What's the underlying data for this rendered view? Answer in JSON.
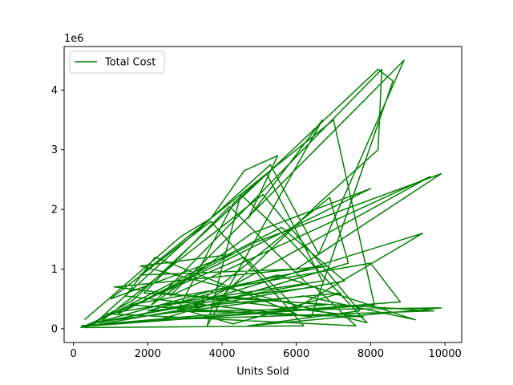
{
  "chart_data": {
    "type": "line",
    "xlabel": "Units Sold",
    "ylabel": "",
    "y_offset_label": "1e6",
    "xlim": [
      -250,
      10450
    ],
    "ylim": [
      -0.23,
      4.73
    ],
    "xticks": [
      0,
      2000,
      4000,
      6000,
      8000,
      10000
    ],
    "xtick_labels": [
      "0",
      "2000",
      "4000",
      "6000",
      "8000",
      "10000"
    ],
    "yticks": [
      0,
      1,
      2,
      3,
      4
    ],
    "ytick_labels": [
      "0",
      "1",
      "2",
      "3",
      "4"
    ],
    "grid": false,
    "legend_position": "top-left",
    "series": [
      {
        "name": "Total Cost",
        "color": "#008000",
        "x": [
          300,
          2900,
          3700,
          4600,
          5500,
          4700,
          6700,
          3600,
          4500,
          5800,
          7900,
          1800,
          4300,
          1000,
          3700,
          5200,
          6200,
          300,
          1600,
          8200,
          8600,
          6400,
          1400,
          2200,
          6000,
          2800,
          4300,
          5200,
          6700,
          4000,
          6600,
          8200,
          8300,
          2100,
          4800,
          8000,
          1200,
          4900,
          9900,
          6000,
          1800,
          7000,
          8100,
          500,
          5300,
          6600,
          8900,
          2600,
          9600,
          3200,
          6900,
          7400,
          2300,
          9700,
          1900,
          4200,
          6300,
          600,
          3800,
          6800,
          1100,
          7800,
          5000,
          1500,
          8000,
          8800,
          400,
          5600,
          7300,
          200,
          4600,
          6000,
          9400,
          3400,
          700,
          5100,
          7700,
          4700,
          9900,
          3000,
          500,
          6200,
          9200,
          5500,
          2000,
          7200,
          4300,
          2500,
          6500,
          7600,
          900,
          3900,
          6800,
          200
        ],
        "y": [
          0.15,
          1.55,
          1.85,
          2.65,
          2.9,
          1.85,
          3.5,
          0.05,
          2.25,
          1.5,
          0.1,
          1.05,
          1.25,
          0.5,
          1.8,
          0.75,
          0.05,
          0.02,
          0.48,
          4.35,
          4.15,
          0.2,
          0.55,
          1.2,
          0.25,
          0.3,
          2.1,
          2.6,
          0.8,
          0.55,
          2.1,
          3.0,
          4.35,
          0.4,
          1.6,
          2.35,
          0.25,
          1.45,
          2.6,
          1.0,
          0.9,
          3.5,
          0.4,
          0.05,
          2.75,
          1.25,
          4.5,
          0.55,
          2.55,
          0.35,
          2.2,
          1.1,
          0.15,
          0.3,
          0.6,
          2.05,
          0.75,
          0.1,
          0.65,
          1.05,
          0.7,
          0.2,
          0.25,
          0.4,
          1.1,
          0.45,
          0.05,
          1.7,
          0.8,
          0.02,
          1.2,
          0.35,
          1.6,
          0.45,
          0.1,
          2.25,
          0.3,
          0.05,
          0.35,
          0.3,
          0.1,
          0.55,
          0.15,
          0.9,
          0.3,
          0.6,
          0.08,
          0.4,
          0.7,
          0.05,
          0.25,
          0.55,
          0.4,
          0.05
        ]
      }
    ]
  }
}
